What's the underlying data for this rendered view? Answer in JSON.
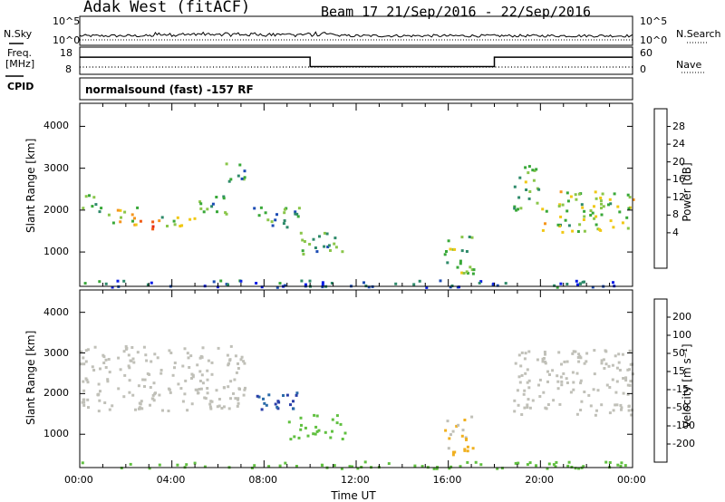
{
  "header": {
    "station": "Adak West (fitACF)",
    "beam_date": "Beam 17  21/Sep/2016 - 22/Sep/2016"
  },
  "summary": {
    "nsky_label": "N.Sky",
    "nsearch_label": "N.Search",
    "nsky_ticks": [
      "10^5",
      "10^0"
    ],
    "nsearch_ticks": [
      "10^5",
      "10^0"
    ],
    "freq_label_1": "Freq.",
    "freq_label_2": "[MHz]",
    "freq_ticks": [
      "18",
      "8"
    ],
    "nave_label": "Nave",
    "nave_ticks": [
      "60",
      "0"
    ],
    "cpid_label": "CPID",
    "cpid_text": "normalsound (fast) -157 RF"
  },
  "axes": {
    "ylabel": "Slant Range [km]",
    "xlabel": "Time UT",
    "y_ticks": [
      "4000",
      "3000",
      "2000",
      "1000"
    ],
    "x_ticks": [
      "00:00",
      "04:00",
      "08:00",
      "12:00",
      "16:00",
      "20:00",
      "00:00"
    ]
  },
  "colorbars": {
    "power_label": "Power [dB]",
    "power_ticks": [
      "28",
      "24",
      "20",
      "16",
      "12",
      "8",
      "4"
    ],
    "velocity_label": "Velocity [m s⁻¹]",
    "velocity_ticks": [
      "200",
      "100",
      "50",
      "15",
      "-15",
      "-50",
      "-100",
      "-200"
    ]
  },
  "colors": {
    "power_scale": [
      "#0a1ee6",
      "#1c4cb4",
      "#2e8a6a",
      "#38a838",
      "#8ac64a",
      "#f0c814",
      "#f5961e",
      "#f05a14",
      "#e62814"
    ],
    "velocity_scale": [
      "#2a3ea8",
      "#2a6aa8",
      "#30a040",
      "#60c040",
      "#c0c0b8",
      "#f0b020",
      "#f08020",
      "#f04020",
      "#e61818"
    ]
  },
  "chart_data": [
    {
      "type": "heatmap",
      "title": "Power",
      "xlabel": "Time UT",
      "ylabel": "Slant Range [km]",
      "xlim": [
        0,
        24
      ],
      "ylim": [
        180,
        4550
      ],
      "colorbar": {
        "label": "Power [dB]",
        "range": [
          0,
          32
        ]
      },
      "regions": [
        {
          "time_range": [
            0.0,
            1.0
          ],
          "range_km": [
            1900,
            2400
          ],
          "value_db": 14
        },
        {
          "time_range": [
            1.0,
            2.5
          ],
          "range_km": [
            1700,
            2100
          ],
          "value_db": 18
        },
        {
          "time_range": [
            2.0,
            3.5
          ],
          "range_km": [
            1550,
            1850
          ],
          "value_db": 26
        },
        {
          "time_range": [
            3.5,
            5.0
          ],
          "range_km": [
            1650,
            2000
          ],
          "value_db": 16
        },
        {
          "time_range": [
            5.0,
            6.5
          ],
          "range_km": [
            1900,
            2400
          ],
          "value_db": 12
        },
        {
          "time_range": [
            6.3,
            7.2
          ],
          "range_km": [
            2600,
            3200
          ],
          "value_db": 10
        },
        {
          "time_range": [
            7.5,
            9.5
          ],
          "range_km": [
            1500,
            2100
          ],
          "value_db": 10
        },
        {
          "time_range": [
            9.5,
            11.5
          ],
          "range_km": [
            900,
            1500
          ],
          "value_db": 12
        },
        {
          "time_range": [
            15.8,
            17.2
          ],
          "range_km": [
            500,
            1500
          ],
          "value_db": 14
        },
        {
          "time_range": [
            18.8,
            20.0
          ],
          "range_km": [
            2000,
            3100
          ],
          "value_db": 14
        },
        {
          "time_range": [
            20.0,
            24.0
          ],
          "range_km": [
            1500,
            2500
          ],
          "value_db": 16
        },
        {
          "time_range": [
            0.0,
            24.0
          ],
          "range_km": [
            180,
            350
          ],
          "value_db": 6
        }
      ]
    },
    {
      "type": "heatmap",
      "title": "Velocity",
      "xlabel": "Time UT",
      "ylabel": "Slant Range [km]",
      "xlim": [
        0,
        24
      ],
      "ylim": [
        180,
        4550
      ],
      "colorbar": {
        "label": "Velocity [m s-1]",
        "range": [
          -250,
          250
        ]
      },
      "regions": [
        {
          "time_range": [
            0.0,
            7.2
          ],
          "range_km": [
            1600,
            3200
          ],
          "value_ms": 0
        },
        {
          "time_range": [
            7.5,
            9.5
          ],
          "range_km": [
            1500,
            2100
          ],
          "value_ms": -200
        },
        {
          "time_range": [
            9.0,
            11.5
          ],
          "range_km": [
            900,
            1500
          ],
          "value_ms": -60
        },
        {
          "time_range": [
            15.8,
            17.2
          ],
          "range_km": [
            500,
            1500
          ],
          "value_ms": 30
        },
        {
          "time_range": [
            18.8,
            24.0
          ],
          "range_km": [
            1500,
            3100
          ],
          "value_ms": 0
        },
        {
          "time_range": [
            0.0,
            24.0
          ],
          "range_km": [
            180,
            350
          ],
          "value_ms": -60
        }
      ]
    },
    {
      "type": "line",
      "title": "Freq. [MHz]",
      "x_hours": [
        0,
        10,
        10,
        18,
        18,
        24
      ],
      "y_mhz": [
        14.5,
        14.5,
        10.5,
        10.5,
        14.5,
        14.5
      ],
      "ylim": [
        8,
        18
      ]
    }
  ]
}
